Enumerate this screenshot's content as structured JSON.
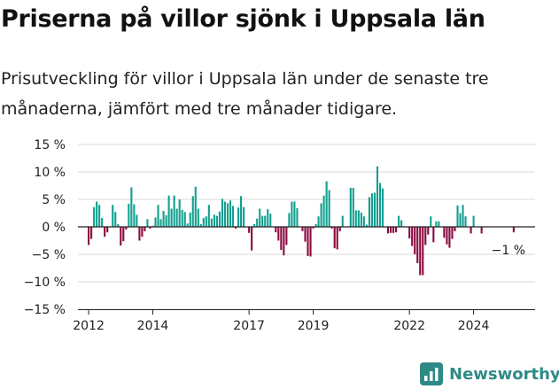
{
  "title": "Priserna på villor sjönk i Uppsala län",
  "subtitle": "Prisutveckling för villor i Uppsala län under de senaste tre månaderna, jämfört med tre månader tidigare.",
  "brand": {
    "name": "Newsworthy",
    "icon": "newsworthy-logo-icon",
    "color": "#2e8a85"
  },
  "chart_data": {
    "type": "bar",
    "ylabel": "",
    "xlabel": "",
    "ylim": [
      -15,
      15
    ],
    "yticks": [
      15,
      10,
      5,
      0,
      -5,
      -10,
      -15
    ],
    "ytick_labels": [
      "15 %",
      "10 %",
      "5 %",
      "0 %",
      "−5 %",
      "−10 %",
      "−15 %"
    ],
    "xticks": [
      "2012",
      "2014",
      "2017",
      "2019",
      "2022",
      "2024"
    ],
    "x_range": [
      "2011-09",
      "2025-12"
    ],
    "grid": "horizontal",
    "colors": {
      "positive": "#13a090",
      "negative": "#8b0a3e"
    },
    "annotation": {
      "month": "2025-04",
      "value": -1,
      "text": "−1 %"
    },
    "series": [
      {
        "values": [
          {
            "x": "2012-01",
            "y": -3.3
          },
          {
            "x": "2012-02",
            "y": -2.2
          },
          {
            "x": "2012-03",
            "y": 3.6
          },
          {
            "x": "2012-04",
            "y": 4.6
          },
          {
            "x": "2012-05",
            "y": 4.0
          },
          {
            "x": "2012-06",
            "y": 1.6
          },
          {
            "x": "2012-07",
            "y": -1.8
          },
          {
            "x": "2012-08",
            "y": -1.0
          },
          {
            "x": "2012-09",
            "y": 0.0
          },
          {
            "x": "2012-10",
            "y": 4.0
          },
          {
            "x": "2012-11",
            "y": 2.7
          },
          {
            "x": "2012-12",
            "y": 0.5
          },
          {
            "x": "2013-01",
            "y": -3.4
          },
          {
            "x": "2013-02",
            "y": -2.6
          },
          {
            "x": "2013-03",
            "y": -0.5
          },
          {
            "x": "2013-04",
            "y": 4.2
          },
          {
            "x": "2013-05",
            "y": 7.2
          },
          {
            "x": "2013-06",
            "y": 4.1
          },
          {
            "x": "2013-07",
            "y": 2.2
          },
          {
            "x": "2013-08",
            "y": -2.5
          },
          {
            "x": "2013-09",
            "y": -1.8
          },
          {
            "x": "2013-10",
            "y": -0.8
          },
          {
            "x": "2013-11",
            "y": 1.4
          },
          {
            "x": "2013-12",
            "y": -0.3
          },
          {
            "x": "2014-01",
            "y": 0.2
          },
          {
            "x": "2014-02",
            "y": 1.7
          },
          {
            "x": "2014-03",
            "y": 4.0
          },
          {
            "x": "2014-04",
            "y": 1.4
          },
          {
            "x": "2014-05",
            "y": 2.9
          },
          {
            "x": "2014-06",
            "y": 2.1
          },
          {
            "x": "2014-07",
            "y": 5.7
          },
          {
            "x": "2014-08",
            "y": 3.3
          },
          {
            "x": "2014-09",
            "y": 5.7
          },
          {
            "x": "2014-10",
            "y": 3.3
          },
          {
            "x": "2014-11",
            "y": 5.0
          },
          {
            "x": "2014-12",
            "y": 3.1
          },
          {
            "x": "2015-01",
            "y": 2.7
          },
          {
            "x": "2015-02",
            "y": 0.6
          },
          {
            "x": "2015-03",
            "y": 2.6
          },
          {
            "x": "2015-04",
            "y": 5.6
          },
          {
            "x": "2015-05",
            "y": 7.3
          },
          {
            "x": "2015-06",
            "y": 3.3
          },
          {
            "x": "2015-07",
            "y": 0.5
          },
          {
            "x": "2015-08",
            "y": 1.6
          },
          {
            "x": "2015-09",
            "y": 1.9
          },
          {
            "x": "2015-10",
            "y": 4.0
          },
          {
            "x": "2015-11",
            "y": 1.5
          },
          {
            "x": "2015-12",
            "y": 2.2
          },
          {
            "x": "2016-01",
            "y": 2.0
          },
          {
            "x": "2016-02",
            "y": 2.8
          },
          {
            "x": "2016-03",
            "y": 5.1
          },
          {
            "x": "2016-04",
            "y": 4.6
          },
          {
            "x": "2016-05",
            "y": 4.3
          },
          {
            "x": "2016-06",
            "y": 4.8
          },
          {
            "x": "2016-07",
            "y": 3.8
          },
          {
            "x": "2016-08",
            "y": -0.3
          },
          {
            "x": "2016-09",
            "y": 3.5
          },
          {
            "x": "2016-10",
            "y": 5.6
          },
          {
            "x": "2016-11",
            "y": 3.6
          },
          {
            "x": "2016-12",
            "y": 0.0
          },
          {
            "x": "2017-01",
            "y": -1.1
          },
          {
            "x": "2017-02",
            "y": -4.3
          },
          {
            "x": "2017-03",
            "y": 0.5
          },
          {
            "x": "2017-04",
            "y": 1.5
          },
          {
            "x": "2017-05",
            "y": 3.3
          },
          {
            "x": "2017-06",
            "y": 2.0
          },
          {
            "x": "2017-07",
            "y": 2.0
          },
          {
            "x": "2017-08",
            "y": 3.2
          },
          {
            "x": "2017-09",
            "y": 2.4
          },
          {
            "x": "2017-10",
            "y": 0.0
          },
          {
            "x": "2017-11",
            "y": -1.0
          },
          {
            "x": "2017-12",
            "y": -2.5
          },
          {
            "x": "2018-01",
            "y": -4.2
          },
          {
            "x": "2018-02",
            "y": -5.2
          },
          {
            "x": "2018-03",
            "y": -3.3
          },
          {
            "x": "2018-04",
            "y": 2.5
          },
          {
            "x": "2018-05",
            "y": 4.6
          },
          {
            "x": "2018-06",
            "y": 4.6
          },
          {
            "x": "2018-07",
            "y": 3.4
          },
          {
            "x": "2018-08",
            "y": 0.0
          },
          {
            "x": "2018-09",
            "y": -0.8
          },
          {
            "x": "2018-10",
            "y": -2.7
          },
          {
            "x": "2018-11",
            "y": -5.3
          },
          {
            "x": "2018-12",
            "y": -5.4
          },
          {
            "x": "2019-01",
            "y": -0.3
          },
          {
            "x": "2019-02",
            "y": 0.5
          },
          {
            "x": "2019-03",
            "y": 1.9
          },
          {
            "x": "2019-04",
            "y": 4.3
          },
          {
            "x": "2019-05",
            "y": 5.7
          },
          {
            "x": "2019-06",
            "y": 8.3
          },
          {
            "x": "2019-07",
            "y": 6.7
          },
          {
            "x": "2019-08",
            "y": -0.3
          },
          {
            "x": "2019-09",
            "y": -3.9
          },
          {
            "x": "2019-10",
            "y": -4.1
          },
          {
            "x": "2019-11",
            "y": -0.8
          },
          {
            "x": "2019-12",
            "y": 2.0
          },
          {
            "x": "2020-01",
            "y": 0.0
          },
          {
            "x": "2020-02",
            "y": 0.0
          },
          {
            "x": "2020-03",
            "y": 7.1
          },
          {
            "x": "2020-04",
            "y": 7.1
          },
          {
            "x": "2020-05",
            "y": 3.0
          },
          {
            "x": "2020-06",
            "y": 3.0
          },
          {
            "x": "2020-07",
            "y": 2.6
          },
          {
            "x": "2020-08",
            "y": 1.9
          },
          {
            "x": "2020-09",
            "y": 0.4
          },
          {
            "x": "2020-10",
            "y": 5.4
          },
          {
            "x": "2020-11",
            "y": 6.1
          },
          {
            "x": "2020-12",
            "y": 6.2
          },
          {
            "x": "2021-01",
            "y": 11.0
          },
          {
            "x": "2021-02",
            "y": 8.0
          },
          {
            "x": "2021-03",
            "y": 7.0
          },
          {
            "x": "2021-04",
            "y": 0.0
          },
          {
            "x": "2021-05",
            "y": -1.2
          },
          {
            "x": "2021-06",
            "y": -1.1
          },
          {
            "x": "2021-07",
            "y": -1.1
          },
          {
            "x": "2021-08",
            "y": -1.0
          },
          {
            "x": "2021-09",
            "y": 2.0
          },
          {
            "x": "2021-10",
            "y": 1.2
          },
          {
            "x": "2021-11",
            "y": 0.0
          },
          {
            "x": "2021-12",
            "y": 0.0
          },
          {
            "x": "2022-01",
            "y": -2.1
          },
          {
            "x": "2022-02",
            "y": -3.5
          },
          {
            "x": "2022-03",
            "y": -5.0
          },
          {
            "x": "2022-04",
            "y": -6.6
          },
          {
            "x": "2022-05",
            "y": -8.8
          },
          {
            "x": "2022-06",
            "y": -8.8
          },
          {
            "x": "2022-07",
            "y": -3.3
          },
          {
            "x": "2022-08",
            "y": -1.4
          },
          {
            "x": "2022-09",
            "y": 1.9
          },
          {
            "x": "2022-10",
            "y": -2.8
          },
          {
            "x": "2022-11",
            "y": 1.0
          },
          {
            "x": "2022-12",
            "y": 1.0
          },
          {
            "x": "2023-01",
            "y": 0.0
          },
          {
            "x": "2023-02",
            "y": -2.0
          },
          {
            "x": "2023-03",
            "y": -3.2
          },
          {
            "x": "2023-04",
            "y": -3.8
          },
          {
            "x": "2023-05",
            "y": -2.2
          },
          {
            "x": "2023-06",
            "y": -0.8
          },
          {
            "x": "2023-07",
            "y": 3.9
          },
          {
            "x": "2023-08",
            "y": 2.5
          },
          {
            "x": "2023-09",
            "y": 4.0
          },
          {
            "x": "2023-10",
            "y": 1.9
          },
          {
            "x": "2023-11",
            "y": 0.0
          },
          {
            "x": "2023-12",
            "y": -1.2
          },
          {
            "x": "2024-01",
            "y": 2.0
          },
          {
            "x": "2024-02",
            "y": 0.0
          },
          {
            "x": "2024-03",
            "y": 0.0
          },
          {
            "x": "2024-04",
            "y": -1.2
          },
          {
            "x": "2024-05",
            "y": 0.0
          },
          {
            "x": "2024-06",
            "y": 0.0
          },
          {
            "x": "2024-07",
            "y": 0.0
          },
          {
            "x": "2024-08",
            "y": 0.0
          },
          {
            "x": "2024-09",
            "y": 0.0
          },
          {
            "x": "2024-10",
            "y": 0.0
          },
          {
            "x": "2024-11",
            "y": 0.0
          },
          {
            "x": "2024-12",
            "y": 0.0
          },
          {
            "x": "2025-01",
            "y": 0.0
          },
          {
            "x": "2025-02",
            "y": 0.0
          },
          {
            "x": "2025-03",
            "y": 0.0
          },
          {
            "x": "2025-04",
            "y": -1.0
          }
        ]
      }
    ]
  }
}
